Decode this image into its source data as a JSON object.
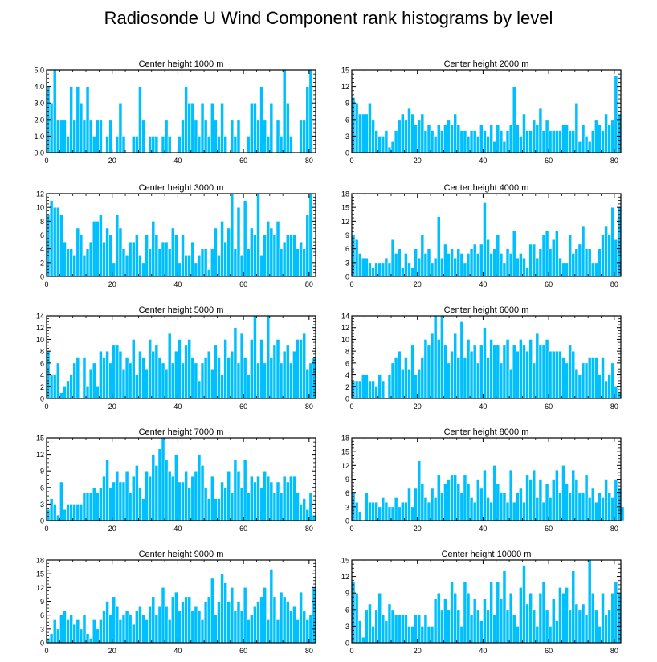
{
  "title": "Radiosonde U Wind Component rank histograms by level",
  "colors": {
    "bar": "#00bfff",
    "bar_edge": "#ffffff",
    "axis": "#000000"
  },
  "chart_data": [
    {
      "type": "bar",
      "title": "Center height 1000 m",
      "x_start": 0,
      "xticks": [
        0,
        20,
        40,
        60,
        80
      ],
      "ylim": [
        0,
        5
      ],
      "yticks": [
        "0.0",
        "1.0",
        "2.0",
        "3.0",
        "4.0",
        "5.0"
      ],
      "ytick_values": [
        0,
        1,
        2,
        3,
        4,
        5
      ],
      "values": [
        4,
        3,
        5,
        2,
        2,
        2,
        1,
        4,
        2,
        4,
        3,
        2,
        4,
        2,
        1,
        2,
        2,
        0,
        1,
        2,
        0,
        1,
        3,
        1,
        0,
        0,
        1,
        1,
        4,
        2,
        0,
        1,
        1,
        1,
        0,
        1,
        2,
        1,
        0,
        0,
        1,
        2,
        4,
        3,
        3,
        2,
        1,
        3,
        2,
        1,
        3,
        2,
        1,
        3,
        1,
        0,
        2,
        1,
        2,
        0,
        0,
        1,
        3,
        3,
        2,
        4,
        2,
        1,
        3,
        0,
        2,
        1,
        5,
        3,
        1,
        0,
        0,
        2,
        2,
        4,
        5
      ]
    },
    {
      "type": "bar",
      "title": "Center height 2000 m",
      "x_start": 0,
      "xticks": [
        0,
        20,
        40,
        60,
        80
      ],
      "ylim": [
        0,
        15
      ],
      "yticks": [
        "0",
        "3",
        "6",
        "9",
        "12",
        "15"
      ],
      "ytick_values": [
        0,
        3,
        6,
        9,
        12,
        15
      ],
      "values": [
        10,
        9,
        7,
        7,
        7,
        9,
        6,
        4,
        3,
        3,
        4,
        1,
        2,
        4,
        6,
        7,
        6,
        8,
        7,
        5,
        6,
        7,
        4,
        5,
        4,
        3,
        5,
        4,
        5,
        6,
        5,
        7,
        5,
        4,
        4,
        3,
        4,
        4,
        3,
        5,
        4,
        3,
        5,
        2,
        5,
        4,
        2,
        4,
        5,
        12,
        5,
        3,
        7,
        4,
        4,
        6,
        5,
        8,
        4,
        6,
        4,
        4,
        4,
        4,
        5,
        5,
        4,
        4,
        9,
        2,
        5,
        3,
        2,
        4,
        6,
        5,
        4,
        7,
        5,
        6,
        14,
        7
      ]
    },
    {
      "type": "bar",
      "title": "Center height 3000 m",
      "x_start": 0,
      "xticks": [
        0,
        20,
        40,
        60,
        80
      ],
      "ylim": [
        0,
        12
      ],
      "yticks": [
        "0",
        "2",
        "4",
        "6",
        "8",
        "10",
        "12"
      ],
      "ytick_values": [
        0,
        2,
        4,
        6,
        8,
        10,
        12
      ],
      "values": [
        9,
        11,
        10,
        10,
        9,
        5,
        4,
        4,
        3,
        7,
        6,
        3,
        4,
        5,
        8,
        8,
        9,
        5,
        7,
        6,
        2,
        9,
        7,
        4,
        3,
        5,
        5,
        6,
        3,
        2,
        6,
        4,
        8,
        6,
        4,
        5,
        5,
        4,
        7,
        6,
        2,
        6,
        3,
        3,
        5,
        2,
        3,
        4,
        4,
        1,
        4,
        7,
        3,
        8,
        5,
        7,
        12,
        4,
        10,
        3,
        11,
        4,
        7,
        6,
        12,
        3,
        6,
        8,
        7,
        6,
        8,
        4,
        5,
        6,
        6,
        6,
        4,
        5,
        4,
        9,
        12
      ]
    },
    {
      "type": "bar",
      "title": "Center height 4000 m",
      "x_start": 0,
      "xticks": [
        0,
        20,
        40,
        60,
        80
      ],
      "ylim": [
        0,
        18
      ],
      "yticks": [
        "0",
        "3",
        "6",
        "9",
        "12",
        "15",
        "18"
      ],
      "ytick_values": [
        0,
        3,
        6,
        9,
        12,
        15,
        18
      ],
      "values": [
        9,
        8,
        5,
        4,
        4,
        3,
        2,
        3,
        3,
        3,
        4,
        3,
        8,
        5,
        6,
        2,
        5,
        3,
        2,
        6,
        4,
        9,
        5,
        6,
        3,
        4,
        13,
        4,
        7,
        5,
        6,
        4,
        6,
        5,
        3,
        5,
        6,
        7,
        5,
        7,
        16,
        8,
        5,
        6,
        9,
        5,
        3,
        6,
        5,
        10,
        4,
        5,
        4,
        2,
        7,
        7,
        4,
        6,
        9,
        10,
        6,
        8,
        10,
        4,
        3,
        3,
        9,
        5,
        6,
        7,
        11,
        6,
        6,
        3,
        3,
        6,
        9,
        11,
        9,
        15,
        8,
        15
      ]
    },
    {
      "type": "bar",
      "title": "Center height 5000 m",
      "x_start": 0,
      "xticks": [
        0,
        20,
        40,
        60,
        80
      ],
      "ylim": [
        0,
        14
      ],
      "yticks": [
        "0",
        "2",
        "4",
        "6",
        "8",
        "10",
        "12",
        "14"
      ],
      "ytick_values": [
        0,
        2,
        4,
        6,
        8,
        10,
        12,
        14
      ],
      "values": [
        8,
        4,
        4,
        6,
        1,
        2,
        3,
        4,
        6,
        7,
        0,
        7,
        2,
        5,
        6,
        2,
        8,
        7,
        8,
        6,
        9,
        9,
        8,
        5,
        7,
        6,
        10,
        4,
        8,
        7,
        5,
        10,
        8,
        9,
        7,
        6,
        5,
        11,
        6,
        8,
        10,
        6,
        9,
        10,
        7,
        6,
        3,
        6,
        7,
        8,
        5,
        9,
        7,
        4,
        10,
        7,
        8,
        12,
        6,
        11,
        7,
        4,
        10,
        14,
        6,
        10,
        6,
        14,
        7,
        9,
        10,
        6,
        8,
        9,
        6,
        8,
        10,
        10,
        11,
        5,
        6,
        7
      ]
    },
    {
      "type": "bar",
      "title": "Center height 6000 m",
      "x_start": 0,
      "xticks": [
        0,
        20,
        40,
        60,
        80
      ],
      "ylim": [
        0,
        14
      ],
      "yticks": [
        "0",
        "2",
        "4",
        "6",
        "8",
        "10",
        "12",
        "14"
      ],
      "ytick_values": [
        0,
        2,
        4,
        6,
        8,
        10,
        12,
        14
      ],
      "values": [
        3,
        3,
        3,
        4,
        4,
        3,
        3,
        2,
        4,
        3,
        0,
        4,
        6,
        7,
        8,
        5,
        7,
        5,
        9,
        4,
        5,
        7,
        10,
        9,
        11,
        14,
        10,
        14,
        9,
        6,
        8,
        11,
        7,
        13,
        7,
        10,
        8,
        9,
        6,
        9,
        12,
        7,
        10,
        9,
        9,
        6,
        9,
        10,
        5,
        9,
        8,
        10,
        9,
        8,
        10,
        6,
        11,
        9,
        9,
        10,
        8,
        8,
        8,
        8,
        7,
        6,
        9,
        8,
        5,
        4,
        6,
        6,
        7,
        7,
        7,
        4,
        7,
        3,
        4,
        6,
        2,
        1
      ]
    },
    {
      "type": "bar",
      "title": "Center height 7000 m",
      "x_start": 0,
      "xticks": [
        0,
        20,
        40,
        60,
        80
      ],
      "ylim": [
        0,
        15
      ],
      "yticks": [
        "0",
        "3",
        "6",
        "9",
        "12",
        "15"
      ],
      "ytick_values": [
        0,
        3,
        6,
        9,
        12,
        15
      ],
      "values": [
        2,
        4,
        3,
        1,
        7,
        2,
        3,
        3,
        3,
        3,
        3,
        5,
        5,
        5,
        6,
        5,
        6,
        8,
        11,
        6,
        7,
        9,
        7,
        7,
        9,
        5,
        8,
        10,
        6,
        4,
        9,
        8,
        12,
        10,
        13,
        15,
        11,
        9,
        8,
        12,
        7,
        7,
        9,
        6,
        8,
        9,
        12,
        10,
        6,
        4,
        8,
        4,
        4,
        7,
        6,
        9,
        5,
        11,
        9,
        6,
        11,
        5,
        8,
        7,
        8,
        6,
        9,
        8,
        7,
        5,
        7,
        5,
        8,
        7,
        8,
        8,
        5,
        3,
        4,
        2,
        5,
        1
      ]
    },
    {
      "type": "bar",
      "title": "Center height 8000 m",
      "x_start": 0,
      "xticks": [
        0,
        20,
        40,
        60,
        80
      ],
      "ylim": [
        0,
        18
      ],
      "yticks": [
        "0",
        "3",
        "6",
        "9",
        "12",
        "15",
        "18"
      ],
      "ytick_values": [
        0,
        3,
        6,
        9,
        12,
        15,
        18
      ],
      "values": [
        6,
        4,
        2,
        0,
        6,
        4,
        4,
        4,
        3,
        5,
        4,
        3,
        3,
        5,
        3,
        4,
        4,
        7,
        3,
        7,
        13,
        8,
        5,
        4,
        7,
        5,
        10,
        6,
        8,
        9,
        10,
        10,
        8,
        6,
        10,
        8,
        5,
        4,
        9,
        7,
        11,
        5,
        4,
        12,
        8,
        6,
        6,
        4,
        11,
        4,
        6,
        7,
        4,
        10,
        9,
        11,
        5,
        9,
        4,
        8,
        5,
        9,
        11,
        6,
        12,
        8,
        6,
        11,
        9,
        6,
        6,
        10,
        5,
        7,
        4,
        6,
        5,
        9,
        6,
        5,
        9,
        7,
        3
      ]
    },
    {
      "type": "bar",
      "title": "Center height 9000 m",
      "x_start": 0,
      "xticks": [
        0,
        20,
        40,
        60,
        80
      ],
      "ylim": [
        0,
        18
      ],
      "yticks": [
        "0",
        "3",
        "6",
        "9",
        "12",
        "15",
        "18"
      ],
      "ytick_values": [
        0,
        3,
        6,
        9,
        12,
        15,
        18
      ],
      "values": [
        1,
        2,
        5,
        3,
        6,
        7,
        5,
        6,
        4,
        5,
        3,
        6,
        2,
        1,
        5,
        3,
        5,
        7,
        9,
        6,
        10,
        8,
        5,
        6,
        7,
        6,
        4,
        7,
        8,
        6,
        5,
        8,
        10,
        6,
        8,
        12,
        8,
        5,
        10,
        11,
        7,
        9,
        10,
        10,
        7,
        8,
        7,
        5,
        9,
        10,
        14,
        6,
        9,
        15,
        13,
        9,
        12,
        7,
        9,
        7,
        12,
        5,
        6,
        8,
        9,
        10,
        12,
        5,
        16,
        10,
        5,
        11,
        10,
        9,
        7,
        8,
        5,
        11,
        7,
        5,
        6,
        12
      ]
    },
    {
      "type": "bar",
      "title": "Center height 10000 m",
      "x_start": 0,
      "xticks": [
        0,
        20,
        40,
        60,
        80
      ],
      "ylim": [
        0,
        15
      ],
      "yticks": [
        "0",
        "3",
        "6",
        "9",
        "12",
        "15"
      ],
      "ytick_values": [
        0,
        3,
        6,
        9,
        12,
        15
      ],
      "values": [
        11,
        9,
        4,
        1,
        6,
        7,
        3,
        6,
        9,
        5,
        4,
        7,
        6,
        5,
        5,
        5,
        5,
        3,
        3,
        5,
        5,
        3,
        5,
        3,
        3,
        8,
        9,
        6,
        8,
        6,
        11,
        9,
        6,
        3,
        11,
        9,
        5,
        8,
        6,
        4,
        8,
        6,
        11,
        5,
        11,
        8,
        13,
        6,
        9,
        5,
        3,
        10,
        14,
        7,
        9,
        6,
        3,
        9,
        11,
        6,
        3,
        8,
        4,
        10,
        9,
        10,
        6,
        13,
        7,
        6,
        7,
        5,
        15,
        9,
        6,
        3,
        9,
        5,
        6,
        9,
        11,
        9
      ]
    }
  ]
}
